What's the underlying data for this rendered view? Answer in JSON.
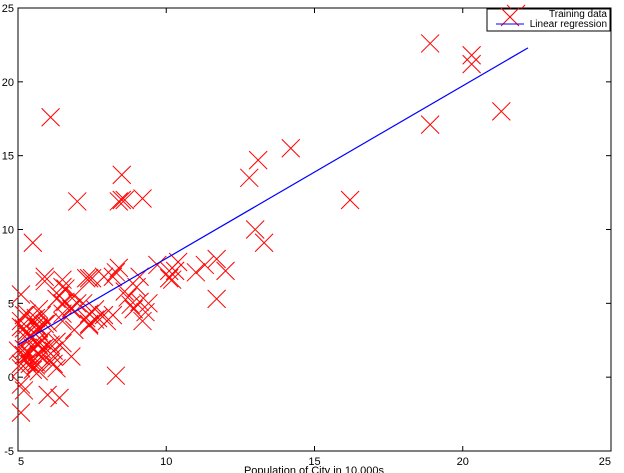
{
  "chart_data": {
    "type": "scatter",
    "title": "",
    "xlabel": "Population of City in 10,000s",
    "ylabel": "",
    "xlim": [
      5,
      25
    ],
    "ylim": [
      -5,
      25
    ],
    "xticks": [
      5,
      10,
      15,
      20,
      25
    ],
    "yticks": [
      -5,
      0,
      5,
      10,
      15,
      20,
      25
    ],
    "grid": false,
    "legend_position": "top-right",
    "legend": [
      "Training data",
      "Linear regression"
    ],
    "series": [
      {
        "name": "Training data",
        "type": "scatter",
        "marker": "x",
        "color": "#ff0000",
        "points": [
          [
            6.1,
            17.6
          ],
          [
            5.5,
            9.1
          ],
          [
            8.5,
            13.7
          ],
          [
            7.0,
            11.9
          ],
          [
            5.9,
            6.8
          ],
          [
            8.4,
            11.9
          ],
          [
            5.6,
            4.0
          ],
          [
            8.6,
            12.0
          ],
          [
            6.5,
            6.6
          ],
          [
            5.1,
            3.8
          ],
          [
            5.7,
            3.3
          ],
          [
            14.2,
            15.5
          ],
          [
            5.7,
            3.1
          ],
          [
            5.1,
            -2.4
          ],
          [
            10.3,
            7.2
          ],
          [
            12.8,
            13.5
          ],
          [
            5.3,
            1.0
          ],
          [
            5.3,
            2.9
          ],
          [
            6.4,
            5.5
          ],
          [
            5.1,
            3.4
          ],
          [
            5.3,
            1.5
          ],
          [
            6.0,
            3.7
          ],
          [
            5.2,
            4.2
          ],
          [
            9.2,
            12.1
          ],
          [
            5.1,
            0.9
          ],
          [
            21.3,
            18.0
          ],
          [
            5.6,
            2.9
          ],
          [
            5.6,
            1.0
          ],
          [
            6.9,
            3.2
          ],
          [
            6.8,
            1.4
          ],
          [
            6.5,
            5.0
          ],
          [
            5.9,
            6.5
          ],
          [
            20.3,
            21.8
          ],
          [
            6.3,
            2.4
          ],
          [
            7.3,
            4.0
          ],
          [
            5.2,
            1.5
          ],
          [
            5.2,
            1.9
          ],
          [
            7.4,
            3.6
          ],
          [
            5.3,
            4.3
          ],
          [
            6.4,
            5.5
          ],
          [
            5.7,
            0.4
          ],
          [
            5.6,
            3.5
          ],
          [
            6.3,
            5.3
          ],
          [
            5.7,
            1.5
          ],
          [
            8.3,
            7.1
          ],
          [
            10.1,
            6.7
          ],
          [
            6.6,
            6.0
          ],
          [
            5.7,
            3.4
          ],
          [
            5.5,
            0.5
          ],
          [
            20.3,
            21.2
          ],
          [
            5.0,
            1.8
          ],
          [
            6.5,
            2.3
          ],
          [
            6.8,
            4.7
          ],
          [
            6.5,
            3.8
          ],
          [
            6.2,
            0.9
          ],
          [
            7.0,
            5.0
          ],
          [
            18.9,
            22.6
          ],
          [
            8.3,
            0.1
          ],
          [
            5.9,
            3.6
          ],
          [
            5.8,
            1.4
          ],
          [
            6.5,
            4.3
          ],
          [
            5.6,
            2.4
          ],
          [
            5.8,
            4.2
          ],
          [
            11.7,
            8.0
          ],
          [
            7.7,
            4.0
          ],
          [
            5.9,
            2.0
          ],
          [
            5.7,
            4.6
          ],
          [
            7.5,
            6.7
          ],
          [
            5.3,
            2.6
          ],
          [
            7.4,
            3.5
          ],
          [
            12.0,
            7.2
          ],
          [
            8.5,
            12.0
          ],
          [
            5.1,
            -0.5
          ],
          [
            8.2,
            4.2
          ],
          [
            5.4,
            0.9
          ],
          [
            6.3,
            0.6
          ],
          [
            5.2,
            -0.9
          ],
          [
            5.6,
            0.8
          ],
          [
            6.2,
            1.4
          ],
          [
            5.8,
            1.9
          ],
          [
            6.0,
            -1.2
          ],
          [
            7.3,
            6.7
          ],
          [
            5.4,
            2.7
          ],
          [
            5.1,
            5.6
          ],
          [
            5.3,
            3.1
          ],
          [
            5.7,
            2.2
          ],
          [
            11.7,
            5.3
          ],
          [
            10.1,
            7.2
          ],
          [
            9.4,
            5.0
          ],
          [
            6.2,
            1.8
          ],
          [
            18.9,
            17.1
          ],
          [
            13.1,
            14.7
          ],
          [
            6.5,
            6.1
          ],
          [
            16.2,
            12.0
          ],
          [
            6.4,
            -1.4
          ],
          [
            5.1,
            0.6
          ],
          [
            13.3,
            9.1
          ],
          [
            13.0,
            10.0
          ],
          [
            9.1,
            5.1
          ],
          [
            11.3,
            7.6
          ],
          [
            8.2,
            6.8
          ],
          [
            7.4,
            6.7
          ],
          [
            8.4,
            7.4
          ],
          [
            9.7,
            7.6
          ],
          [
            9.1,
            6.8
          ],
          [
            10.2,
            6.6
          ],
          [
            7.9,
            6.8
          ],
          [
            9.0,
            6.1
          ],
          [
            8.8,
            4.9
          ],
          [
            6.8,
            4.6
          ],
          [
            7.2,
            5.0
          ],
          [
            7.9,
            4.2
          ],
          [
            8.7,
            5.4
          ],
          [
            9.3,
            4.4
          ],
          [
            7.4,
            4.3
          ],
          [
            6.6,
            5.1
          ],
          [
            8.0,
            3.8
          ],
          [
            7.6,
            3.9
          ],
          [
            8.9,
            4.6
          ],
          [
            9.2,
            3.8
          ],
          [
            10.4,
            7.8
          ],
          [
            11.0,
            7.1
          ],
          [
            7.6,
            4.6
          ],
          [
            6.9,
            5.5
          ],
          [
            8.6,
            5.8
          ],
          [
            5.5,
            3.9
          ],
          [
            5.8,
            2.5
          ],
          [
            6.1,
            2.2
          ],
          [
            5.5,
            2.0
          ],
          [
            6.1,
            1.0
          ],
          [
            5.2,
            3.3
          ],
          [
            5.4,
            1.6
          ],
          [
            21.8,
            24.6
          ],
          [
            22.2,
            24.1
          ]
        ]
      },
      {
        "name": "Linear regression",
        "type": "line",
        "color": "#0000ff",
        "points": [
          [
            5.0,
            2.2
          ],
          [
            22.2,
            22.3
          ]
        ]
      }
    ]
  }
}
